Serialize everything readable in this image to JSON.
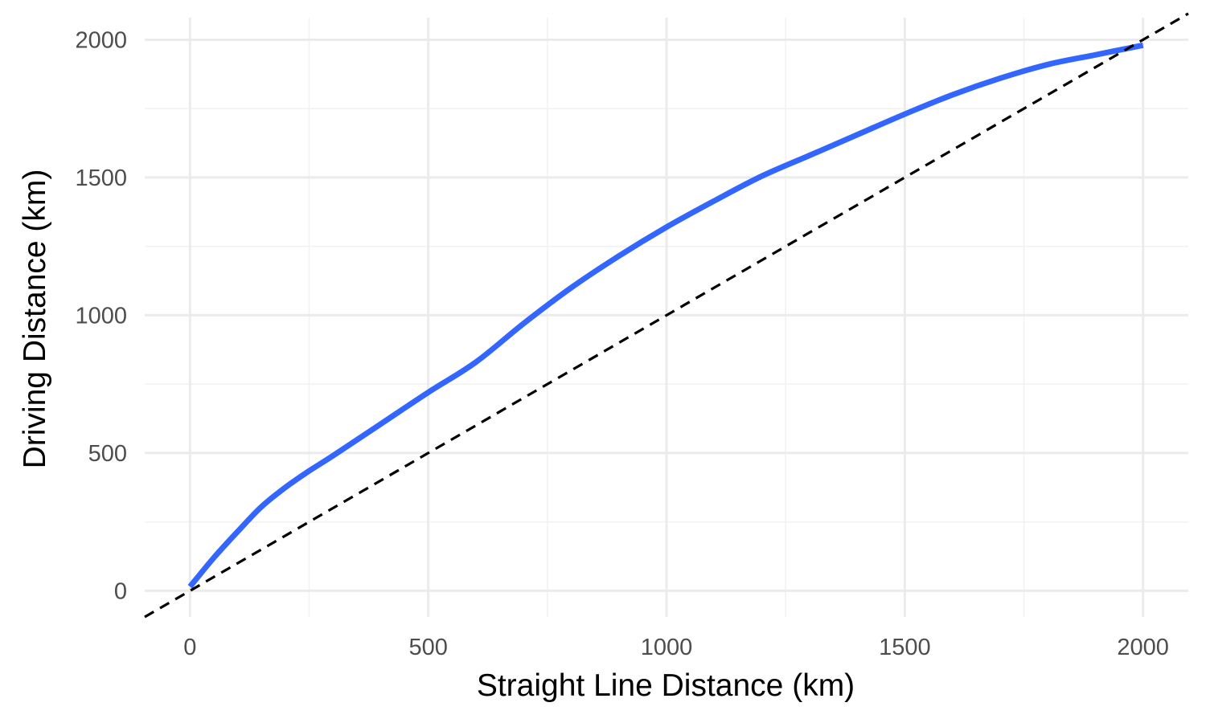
{
  "chart_data": {
    "type": "line",
    "title": "",
    "xlabel": "Straight Line Distance (km)",
    "ylabel": "Driving Distance (km)",
    "xlim": [
      -95,
      2095
    ],
    "ylim": [
      -95,
      2080
    ],
    "x_ticks": [
      0,
      500,
      1000,
      1500,
      2000
    ],
    "y_ticks": [
      0,
      500,
      1000,
      1500,
      2000
    ],
    "x_tick_labels": [
      "0",
      "500",
      "1000",
      "1500",
      "2000"
    ],
    "y_tick_labels": [
      "0",
      "500",
      "1000",
      "1500",
      "2000"
    ],
    "grid": true,
    "series": [
      {
        "style": "solid",
        "color": "#3366ff",
        "x": [
          0,
          50,
          100,
          150,
          200,
          250,
          300,
          400,
          500,
          600,
          700,
          800,
          900,
          1000,
          1100,
          1200,
          1300,
          1400,
          1500,
          1600,
          1700,
          1800,
          1900,
          2000
        ],
        "y": [
          15,
          120,
          215,
          305,
          375,
          435,
          490,
          605,
          720,
          830,
          970,
          1100,
          1215,
          1320,
          1415,
          1505,
          1580,
          1655,
          1730,
          1800,
          1860,
          1910,
          1945,
          1980
        ]
      },
      {
        "style": "dashed",
        "color": "#000000",
        "x": [
          -95,
          2095
        ],
        "y": [
          -95,
          2095
        ]
      }
    ]
  }
}
